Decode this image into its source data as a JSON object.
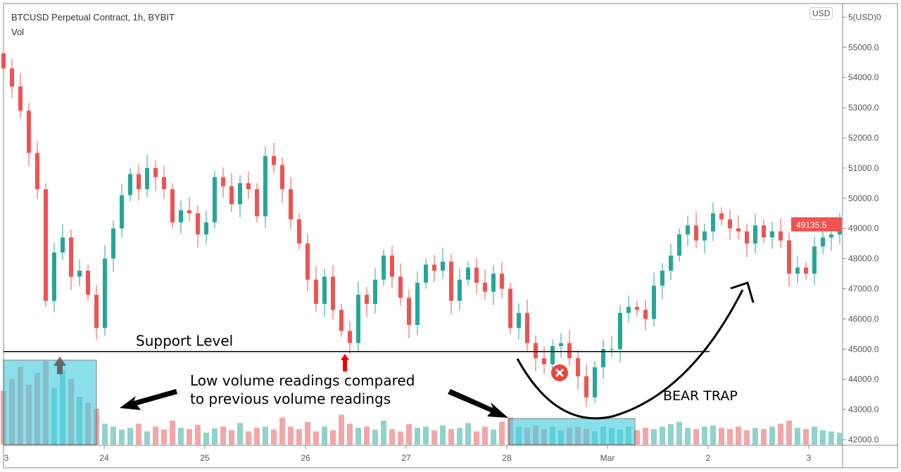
{
  "header": {
    "title": "BTCUSD Perpetual Contract, 1h, BYBIT",
    "indicator": "Vol",
    "currency": "USD"
  },
  "colors": {
    "up": "#26a69a",
    "down": "#ef5350",
    "up_vol": "#8fd3cc",
    "down_vol": "#f4a6a6",
    "price_label": "#ef5350",
    "highlight": "#3fcbe0"
  },
  "chart_data": {
    "type": "candlestick",
    "title": "BTCUSD Perpetual Contract, 1h, BYBIT",
    "ylim": [
      41900,
      56000
    ],
    "yticks": [
      42000,
      43000,
      44000,
      45000,
      46000,
      47000,
      48000,
      49000,
      50000,
      51000,
      52000,
      53000,
      54000,
      55000,
      56000
    ],
    "ytick_labels": [
      "42000.0",
      "43000.0",
      "44000.0",
      "45000.0",
      "46000.0",
      "47000.0",
      "48000.0",
      "49000.0",
      "50000.0",
      "51000.0",
      "52000.0",
      "53000.0",
      "54000.0",
      "55000.0",
      "5(USD)0"
    ],
    "xtick_labels": [
      "3",
      "24",
      "25",
      "26",
      "27",
      "28",
      "Mar",
      "2",
      "3"
    ],
    "open_first": 54800,
    "closes": [
      54300,
      53700,
      52900,
      51500,
      50300,
      46600,
      48200,
      48700,
      47400,
      47600,
      46800,
      45700,
      48000,
      49000,
      50100,
      50800,
      50300,
      51000,
      50700,
      50300,
      49200,
      49600,
      49500,
      48800,
      49200,
      50700,
      50400,
      49800,
      50500,
      50300,
      49400,
      51400,
      51100,
      50300,
      49300,
      48500,
      47300,
      46500,
      47400,
      46300,
      45600,
      45200,
      46800,
      46500,
      47300,
      48100,
      47400,
      46700,
      45800,
      47200,
      47800,
      47600,
      47900,
      46600,
      47300,
      47700,
      47200,
      46900,
      47500,
      47000,
      45700,
      46200,
      45200,
      44700,
      44500,
      45100,
      45200,
      44700,
      44100,
      43400,
      44400,
      45000,
      45000,
      46200,
      46400,
      46300,
      46000,
      47100,
      47600,
      48100,
      48800,
      49100,
      48600,
      48900,
      49500,
      49300,
      49000,
      48900,
      48500,
      49100,
      48700,
      48900,
      48600,
      47500,
      47700,
      47500,
      48400,
      48700,
      48800,
      49135.5
    ],
    "volume": [
      90,
      110,
      130,
      100,
      120,
      140,
      95,
      125,
      110,
      80,
      70,
      60,
      35,
      30,
      25,
      28,
      35,
      22,
      30,
      25,
      40,
      28,
      26,
      33,
      20,
      27,
      30,
      24,
      36,
      22,
      28,
      30,
      25,
      45,
      30,
      26,
      38,
      22,
      30,
      24,
      50,
      35,
      28,
      30,
      25,
      40,
      26,
      22,
      34,
      28,
      30,
      24,
      32,
      26,
      28,
      36,
      22,
      30,
      25,
      38,
      45,
      30,
      28,
      32,
      26,
      30,
      24,
      28,
      30,
      26,
      22,
      30,
      28,
      25,
      30,
      24,
      28,
      26,
      30,
      34,
      38,
      28,
      26,
      30,
      32,
      28,
      26,
      30,
      24,
      28,
      26,
      30,
      35,
      40,
      28,
      26,
      30,
      24,
      22,
      20
    ],
    "last_price": "49135.5",
    "annotations": {
      "support": "Support Level",
      "support_price": 44920,
      "volume_note_1": "Low volume readings compared",
      "volume_note_2": "to previous volume readings",
      "bear_trap": "BEAR TRAP"
    }
  }
}
